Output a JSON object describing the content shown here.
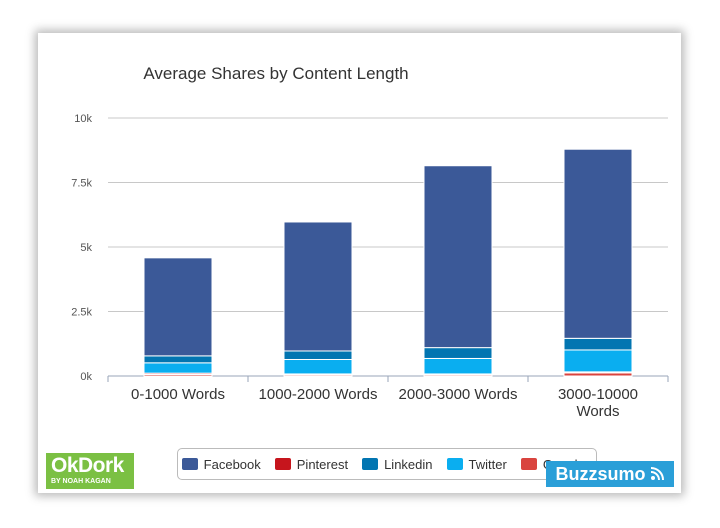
{
  "chart_data": {
    "type": "bar",
    "stacked": true,
    "title": "Average Shares by Content Length",
    "xlabel": "",
    "ylabel": "",
    "ylim": [
      0,
      10000
    ],
    "yticks": [
      0,
      2500,
      5000,
      7500,
      10000
    ],
    "ytick_labels": [
      "0k",
      "2.5k",
      "5k",
      "7.5k",
      "10k"
    ],
    "grid": true,
    "legend_position": "bottom",
    "categories": [
      [
        "0-1000 Words"
      ],
      [
        "1000-2000 Words"
      ],
      [
        "2000-3000 Words"
      ],
      [
        "3000-10000",
        "Words"
      ]
    ],
    "series": [
      {
        "name": "Google+",
        "color": "#d9443f",
        "values": [
          60,
          50,
          50,
          120
        ]
      },
      {
        "name": "Pinterest",
        "color": "#c6151d",
        "values": [
          50,
          30,
          30,
          40
        ]
      },
      {
        "name": "Twitter",
        "color": "#0aaef0",
        "values": [
          400,
          560,
          600,
          850
        ]
      },
      {
        "name": "Linkedin",
        "color": "#0275b1",
        "values": [
          270,
          330,
          420,
          450
        ]
      },
      {
        "name": "Facebook",
        "color": "#3b5998",
        "values": [
          3800,
          5000,
          7050,
          7330
        ]
      }
    ],
    "legend_order": [
      "Facebook",
      "Pinterest",
      "Linkedin",
      "Twitter",
      "Google+"
    ]
  },
  "logos": {
    "okdork_name": "OkDork",
    "okdork_sub": "BY NOAH KAGAN",
    "buzzsumo_name": "Buzzsumo"
  }
}
